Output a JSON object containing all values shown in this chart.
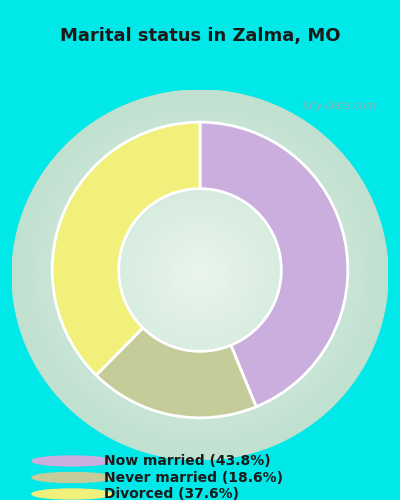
{
  "title": "Marital status in Zalma, MO",
  "slices": [
    43.8,
    18.6,
    37.6
  ],
  "labels": [
    "Now married (43.8%)",
    "Never married (18.6%)",
    "Divorced (37.6%)"
  ],
  "colors": [
    "#c9aede",
    "#c5cc9a",
    "#f0f07a"
  ],
  "bg_cyan": "#00e8e8",
  "chart_bg_color": "#e0f0e8",
  "title_fontsize": 13,
  "legend_fontsize": 10,
  "watermark": "City-Data.com",
  "donut_width": 0.45,
  "start_angle": 90
}
